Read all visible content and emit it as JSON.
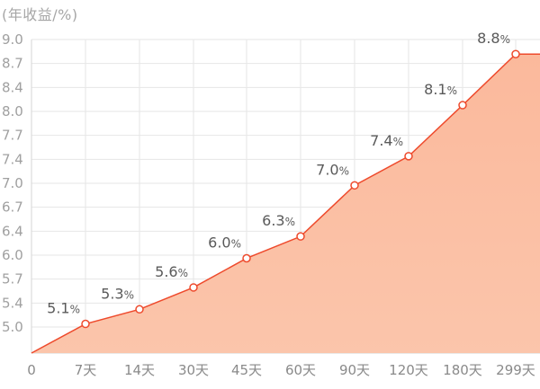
{
  "chart_data": {
    "type": "area",
    "ylabel": "(年收益/%)",
    "categories": [
      "0",
      "7天",
      "14天",
      "30天",
      "45天",
      "60天",
      "90天",
      "120天",
      "180天",
      "299天"
    ],
    "yticks": [
      "9.0",
      "8.7",
      "8.4",
      "8.0",
      "7.7",
      "7.4",
      "7.0",
      "6.7",
      "6.4",
      "6.0",
      "5.7",
      "5.4",
      "5.0"
    ],
    "ylim": [
      4.7,
      9.0
    ],
    "points": [
      {
        "x": "0",
        "y": 4.7,
        "label": ""
      },
      {
        "x": "7天",
        "y": 5.1,
        "label": "5.1",
        "unit": "%"
      },
      {
        "x": "14天",
        "y": 5.3,
        "label": "5.3",
        "unit": "%"
      },
      {
        "x": "30天",
        "y": 5.6,
        "label": "5.6",
        "unit": "%"
      },
      {
        "x": "45天",
        "y": 6.0,
        "label": "6.0",
        "unit": "%"
      },
      {
        "x": "60天",
        "y": 6.3,
        "label": "6.3",
        "unit": "%"
      },
      {
        "x": "90天",
        "y": 7.0,
        "label": "7.0",
        "unit": "%"
      },
      {
        "x": "120天",
        "y": 7.4,
        "label": "7.4",
        "unit": "%"
      },
      {
        "x": "180天",
        "y": 8.1,
        "label": "8.1",
        "unit": "%"
      },
      {
        "x": "299天",
        "y": 8.8,
        "label": "8.8",
        "unit": "%"
      }
    ],
    "grid": true,
    "colors": {
      "line": "#ee4a2c",
      "fill_top": "#fbb99c",
      "fill_bottom": "#fbc5ab",
      "marker_fill": "#ffffff",
      "grid": "#e6e6e6"
    }
  }
}
